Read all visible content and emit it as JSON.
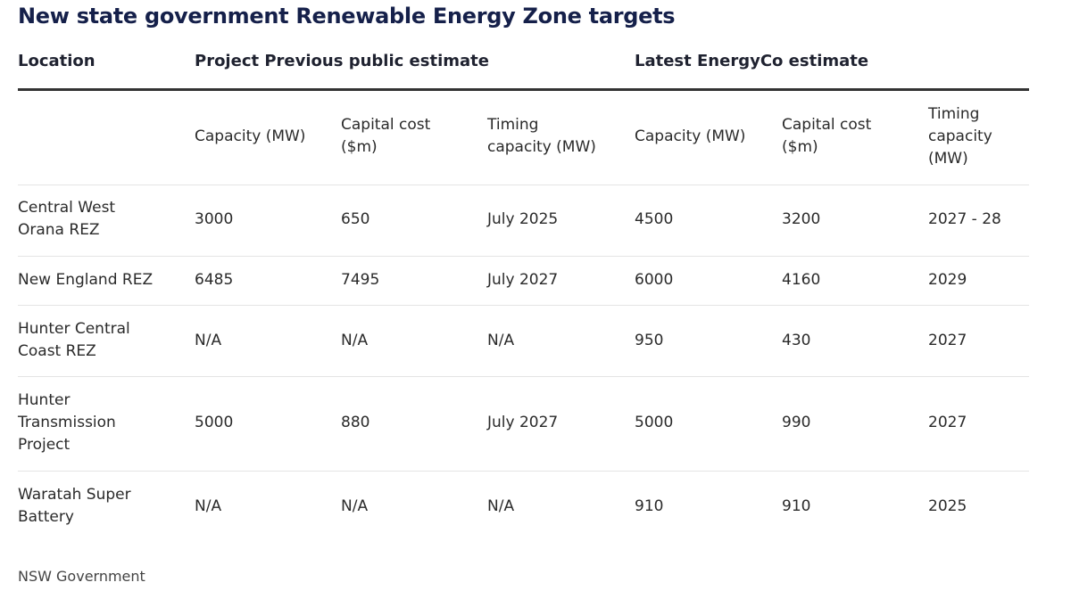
{
  "title": "New state government Renewable Energy Zone targets",
  "header": {
    "location": "Location",
    "previous": "Project Previous public estimate",
    "latest": "Latest EnergyCo estimate"
  },
  "subheaders": {
    "capacity": "Capacity (MW)",
    "capital_cost_1": "Capital cost",
    "capital_cost_2": "($m)",
    "timing_prev_1": "Timing",
    "timing_prev_2": "capacity (MW)",
    "timing_latest_1": "Timing",
    "timing_latest_2": "capacity",
    "timing_latest_3": "(MW)"
  },
  "rows": [
    {
      "location": [
        "Central West",
        "Orana REZ"
      ],
      "prev_capacity": "3000",
      "prev_cost": "650",
      "prev_timing": "July 2025",
      "new_capacity": "4500",
      "new_cost": "3200",
      "new_timing": "2027 - 28"
    },
    {
      "location": [
        "New England REZ"
      ],
      "prev_capacity": "6485",
      "prev_cost": "7495",
      "prev_timing": "July 2027",
      "new_capacity": "6000",
      "new_cost": "4160",
      "new_timing": "2029"
    },
    {
      "location": [
        "Hunter Central",
        "Coast REZ"
      ],
      "prev_capacity": "N/A",
      "prev_cost": "N/A",
      "prev_timing": "N/A",
      "new_capacity": "950",
      "new_cost": "430",
      "new_timing": "2027"
    },
    {
      "location": [
        "Hunter",
        "Transmission",
        "Project"
      ],
      "prev_capacity": "5000",
      "prev_cost": "880",
      "prev_timing": "July 2027",
      "new_capacity": "5000",
      "new_cost": "990",
      "new_timing": "2027"
    },
    {
      "location": [
        "Waratah Super",
        "Battery"
      ],
      "prev_capacity": "N/A",
      "prev_cost": "N/A",
      "prev_timing": "N/A",
      "new_capacity": "910",
      "new_cost": "910",
      "new_timing": "2025"
    }
  ],
  "source": "NSW Government"
}
